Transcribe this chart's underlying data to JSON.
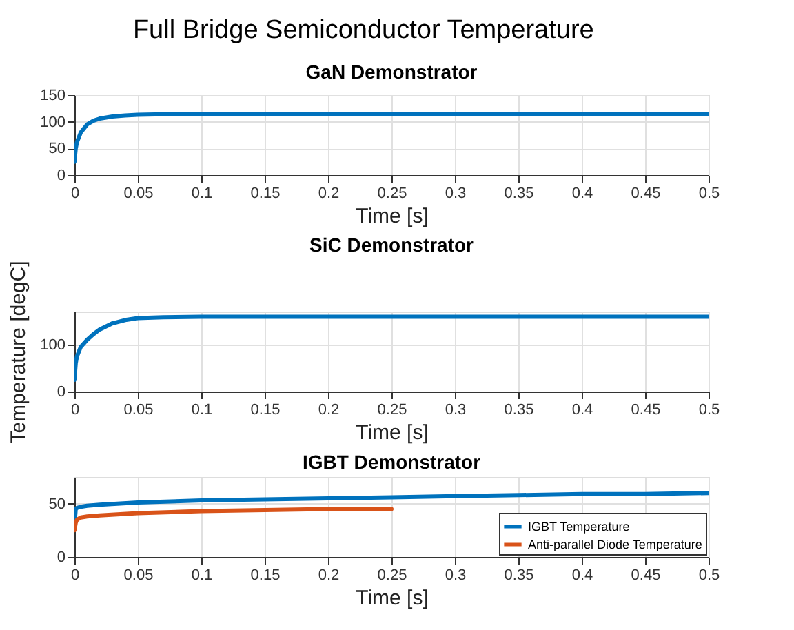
{
  "chart_data": [
    {
      "type": "line",
      "title": "GaN Demonstrator",
      "annotations": [
        "Full Bridge Semiconductor Temperature"
      ],
      "xlabel": "Time [s]",
      "xlim": [
        0,
        0.5
      ],
      "xticks": [
        0,
        0.05,
        0.1,
        0.15,
        0.2,
        0.25,
        0.3,
        0.35,
        0.4,
        0.45,
        0.5
      ],
      "ylim": [
        0,
        150
      ],
      "yticks": [
        0,
        50,
        100,
        150
      ],
      "grid": true,
      "marker": "none",
      "line_style": "solid",
      "x": [
        0,
        0.001,
        0.002,
        0.005,
        0.01,
        0.015,
        0.02,
        0.03,
        0.04,
        0.05,
        0.07,
        0.1,
        0.2,
        0.3,
        0.4,
        0.5
      ],
      "series": [
        {
          "color": "#0072bd",
          "values": [
            25,
            50,
            62,
            80,
            95,
            102,
            106,
            110,
            112,
            113,
            114,
            114,
            114,
            114,
            114,
            114
          ]
        }
      ]
    },
    {
      "type": "line",
      "title": "SiC Demonstrator",
      "xlabel": "Time [s]",
      "ylabel": "Temperature [degC]",
      "xlim": [
        0,
        0.5
      ],
      "xticks": [
        0,
        0.05,
        0.1,
        0.15,
        0.2,
        0.25,
        0.3,
        0.35,
        0.4,
        0.45,
        0.5
      ],
      "ylim": [
        0,
        170
      ],
      "yticks": [
        0,
        100
      ],
      "grid": true,
      "marker": "none",
      "line_style": "solid",
      "x": [
        0,
        0.001,
        0.002,
        0.005,
        0.01,
        0.015,
        0.02,
        0.03,
        0.04,
        0.05,
        0.07,
        0.1,
        0.2,
        0.3,
        0.4,
        0.5
      ],
      "series": [
        {
          "color": "#0072bd",
          "values": [
            25,
            60,
            75,
            95,
            110,
            122,
            132,
            145,
            152,
            156,
            158,
            159,
            159,
            159,
            159,
            159
          ]
        }
      ]
    },
    {
      "type": "line",
      "title": "IGBT Demonstrator",
      "xlabel": "Time [s]",
      "xlim": [
        0,
        0.5
      ],
      "xticks": [
        0,
        0.05,
        0.1,
        0.15,
        0.2,
        0.25,
        0.3,
        0.35,
        0.4,
        0.45,
        0.5
      ],
      "ylim": [
        0,
        75
      ],
      "yticks": [
        0,
        50
      ],
      "grid": true,
      "marker": "none",
      "line_style": "solid",
      "legend": "bottom right",
      "series": [
        {
          "name": "IGBT Temperature",
          "color": "#0072bd",
          "x": [
            0,
            0.001,
            0.002,
            0.005,
            0.01,
            0.02,
            0.05,
            0.1,
            0.15,
            0.2,
            0.25,
            0.3,
            0.35,
            0.4,
            0.45,
            0.5
          ],
          "values": [
            30,
            45,
            46,
            47,
            48,
            49,
            51,
            53,
            54,
            55,
            56,
            57,
            58,
            59,
            59,
            60
          ]
        },
        {
          "name": "Anti-parallel Diode Temperature",
          "color": "#d95319",
          "x": [
            0,
            0.001,
            0.002,
            0.005,
            0.01,
            0.02,
            0.05,
            0.1,
            0.15,
            0.2,
            0.25
          ],
          "values": [
            25,
            32,
            35,
            37,
            38,
            39,
            41,
            43,
            44,
            45,
            45
          ]
        }
      ]
    }
  ]
}
